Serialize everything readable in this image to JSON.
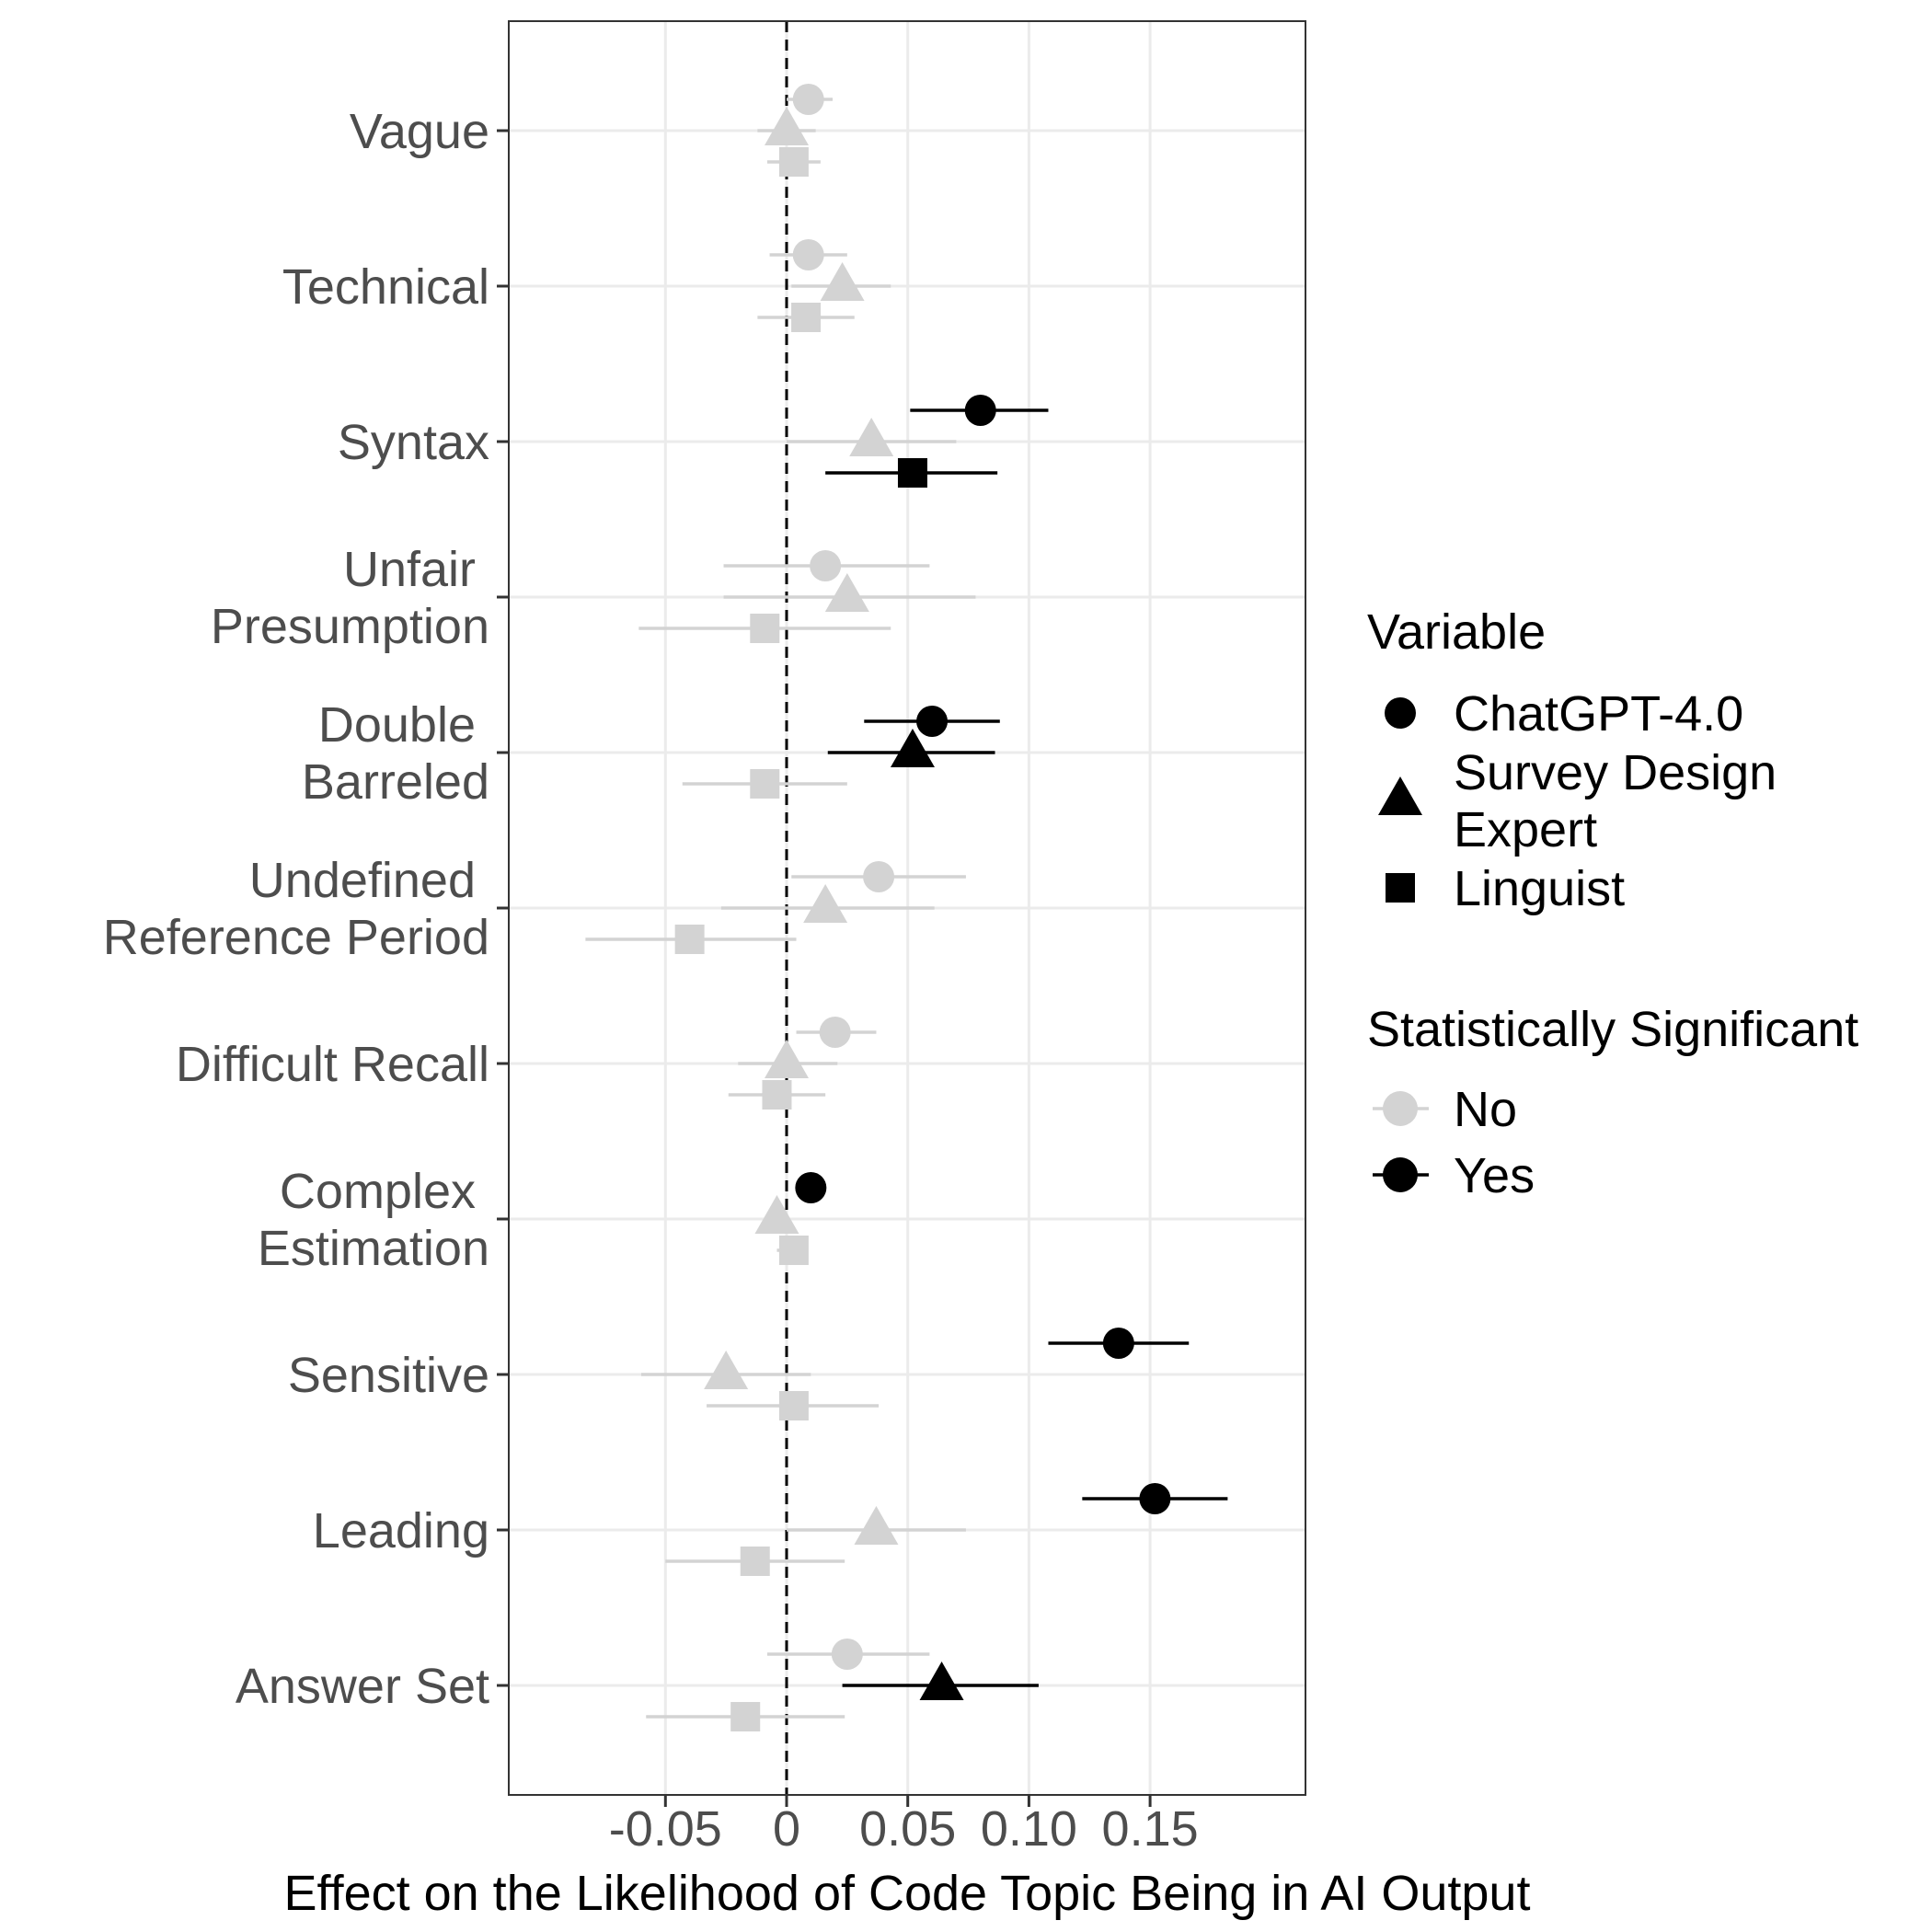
{
  "chart_data": {
    "type": "scatter",
    "subtype": "coefficient-plot-with-error-bars",
    "xlabel": "Effect on the Likelihood of Code Topic Being in AI Output",
    "xlim": [
      -0.115,
      0.215
    ],
    "x_ticks": [
      {
        "value": -0.05,
        "label": "-0.05"
      },
      {
        "value": 0,
        "label": "0"
      },
      {
        "value": 0.05,
        "label": "0.05"
      },
      {
        "value": 0.1,
        "label": "0.10"
      },
      {
        "value": 0.15,
        "label": "0.15"
      }
    ],
    "reference_line": 0,
    "grid": true,
    "categories": [
      [
        "Vague"
      ],
      [
        "Technical"
      ],
      [
        "Syntax"
      ],
      [
        "Unfair ",
        "Presumption"
      ],
      [
        "Double ",
        "Barreled"
      ],
      [
        "Undefined ",
        "Reference Period"
      ],
      [
        "Difficult Recall"
      ],
      [
        "Complex ",
        "Estimation"
      ],
      [
        "Sensitive"
      ],
      [
        "Leading"
      ],
      [
        "Answer Set"
      ]
    ],
    "series": [
      {
        "name": "ChatGPT-4.0",
        "shape": "circle",
        "points": [
          {
            "est": 0.009,
            "lo": 0.0,
            "hi": 0.019,
            "sig": false
          },
          {
            "est": 0.009,
            "lo": -0.007,
            "hi": 0.025,
            "sig": false
          },
          {
            "est": 0.08,
            "lo": 0.051,
            "hi": 0.108,
            "sig": true
          },
          {
            "est": 0.016,
            "lo": -0.026,
            "hi": 0.059,
            "sig": false
          },
          {
            "est": 0.06,
            "lo": 0.032,
            "hi": 0.088,
            "sig": true
          },
          {
            "est": 0.038,
            "lo": 0.002,
            "hi": 0.074,
            "sig": false
          },
          {
            "est": 0.02,
            "lo": 0.004,
            "hi": 0.037,
            "sig": false
          },
          {
            "est": 0.01,
            "lo": 0.01,
            "hi": 0.01,
            "sig": true
          },
          {
            "est": 0.137,
            "lo": 0.108,
            "hi": 0.166,
            "sig": true
          },
          {
            "est": 0.152,
            "lo": 0.122,
            "hi": 0.182,
            "sig": true
          },
          {
            "est": 0.025,
            "lo": -0.008,
            "hi": 0.059,
            "sig": false
          }
        ]
      },
      {
        "name": "Survey Design Expert",
        "shape": "triangle",
        "points": [
          {
            "est": 0.0,
            "lo": -0.012,
            "hi": 0.012,
            "sig": false
          },
          {
            "est": 0.023,
            "lo": 0.002,
            "hi": 0.043,
            "sig": false
          },
          {
            "est": 0.035,
            "lo": 0.0,
            "hi": 0.07,
            "sig": false
          },
          {
            "est": 0.025,
            "lo": -0.026,
            "hi": 0.078,
            "sig": false
          },
          {
            "est": 0.052,
            "lo": 0.017,
            "hi": 0.086,
            "sig": true
          },
          {
            "est": 0.016,
            "lo": -0.027,
            "hi": 0.061,
            "sig": false
          },
          {
            "est": 0.0,
            "lo": -0.02,
            "hi": 0.021,
            "sig": false
          },
          {
            "est": -0.004,
            "lo": -0.006,
            "hi": 0.0,
            "sig": false
          },
          {
            "est": -0.025,
            "lo": -0.06,
            "hi": 0.01,
            "sig": false
          },
          {
            "est": 0.037,
            "lo": 0.0,
            "hi": 0.074,
            "sig": false
          },
          {
            "est": 0.064,
            "lo": 0.023,
            "hi": 0.104,
            "sig": true
          }
        ]
      },
      {
        "name": "Linguist",
        "shape": "square",
        "points": [
          {
            "est": 0.003,
            "lo": -0.008,
            "hi": 0.014,
            "sig": false
          },
          {
            "est": 0.008,
            "lo": -0.012,
            "hi": 0.028,
            "sig": false
          },
          {
            "est": 0.052,
            "lo": 0.016,
            "hi": 0.087,
            "sig": true
          },
          {
            "est": -0.009,
            "lo": -0.061,
            "hi": 0.043,
            "sig": false
          },
          {
            "est": -0.009,
            "lo": -0.043,
            "hi": 0.025,
            "sig": false
          },
          {
            "est": -0.04,
            "lo": -0.083,
            "hi": 0.004,
            "sig": false
          },
          {
            "est": -0.004,
            "lo": -0.024,
            "hi": 0.016,
            "sig": false
          },
          {
            "est": 0.003,
            "lo": -0.004,
            "hi": 0.008,
            "sig": false
          },
          {
            "est": 0.003,
            "lo": -0.033,
            "hi": 0.038,
            "sig": false
          },
          {
            "est": -0.013,
            "lo": -0.05,
            "hi": 0.024,
            "sig": false
          },
          {
            "est": -0.017,
            "lo": -0.058,
            "hi": 0.024,
            "sig": false
          }
        ]
      }
    ],
    "legend": {
      "placement": "right",
      "variable_title": "Variable",
      "variable_items": [
        {
          "lines": [
            "ChatGPT-4.0"
          ],
          "shape": "circle"
        },
        {
          "lines": [
            "Survey Design",
            "Expert"
          ],
          "shape": "triangle"
        },
        {
          "lines": [
            "Linguist"
          ],
          "shape": "square"
        }
      ],
      "sig_title": "Statistically Significant",
      "sig_items": [
        {
          "label": "No",
          "color": "#d3d3d3"
        },
        {
          "label": "Yes",
          "color": "#000000"
        }
      ]
    },
    "colors": {
      "significant": "#000000",
      "not_significant": "#d3d3d3",
      "grid": "#ebebeb",
      "panel_border": "#333333",
      "tick_text": "#4d4d4d"
    }
  }
}
